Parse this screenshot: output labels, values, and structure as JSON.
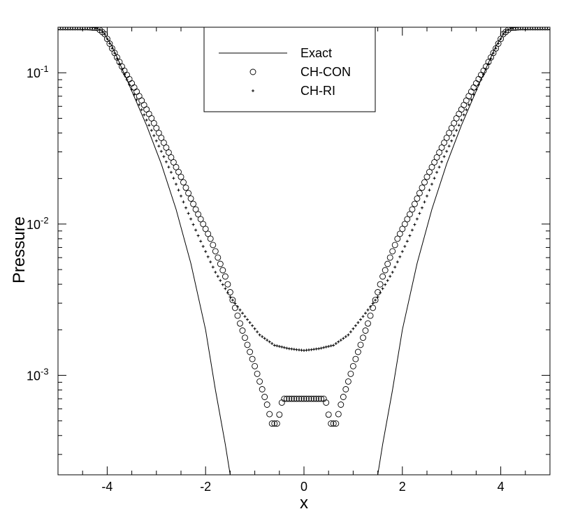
{
  "chart_data": {
    "type": "line",
    "title": "",
    "xlabel": "x",
    "ylabel": "Pressure",
    "xlim": [
      -5,
      5
    ],
    "ylim": [
      0.00022,
      0.2
    ],
    "yscale": "log",
    "grid": false,
    "legend_position": "top-center",
    "x_ticks": [
      "-4",
      "-2",
      "0",
      "2",
      "4"
    ],
    "y_ticks": [
      {
        "mantissa": "10",
        "exponent": "-1"
      },
      {
        "mantissa": "10",
        "exponent": "-2"
      },
      {
        "mantissa": "10",
        "exponent": "-3"
      }
    ],
    "series": [
      {
        "name": "Exact",
        "style": "line",
        "color": "#000000",
        "points": [
          [
            -5.0,
            0.2
          ],
          [
            -4.3,
            0.2
          ],
          [
            -4.1,
            0.19
          ],
          [
            -3.9,
            0.15
          ],
          [
            -3.6,
            0.09
          ],
          [
            -3.2,
            0.045
          ],
          [
            -2.9,
            0.025
          ],
          [
            -2.6,
            0.0125
          ],
          [
            -2.3,
            0.0055
          ],
          [
            -2.0,
            0.002
          ],
          [
            -1.8,
            0.0008
          ],
          [
            -1.6,
            0.00035
          ],
          [
            -1.5,
            0.00022
          ],
          null,
          [
            1.5,
            0.00022
          ],
          [
            1.6,
            0.00035
          ],
          [
            1.8,
            0.0008
          ],
          [
            2.0,
            0.002
          ],
          [
            2.3,
            0.0055
          ],
          [
            2.6,
            0.0125
          ],
          [
            2.9,
            0.025
          ],
          [
            3.2,
            0.045
          ],
          [
            3.6,
            0.09
          ],
          [
            3.9,
            0.15
          ],
          [
            4.1,
            0.19
          ],
          [
            4.3,
            0.2
          ],
          [
            5.0,
            0.2
          ]
        ]
      },
      {
        "name": "CH-CON",
        "style": "circle",
        "color": "#000000",
        "spacing": 0.05,
        "knots": [
          [
            0.0,
            0.0007
          ],
          [
            0.4,
            0.0007
          ],
          [
            0.45,
            0.00066
          ],
          [
            0.5,
            0.00055
          ],
          [
            0.55,
            0.00048
          ],
          [
            0.65,
            0.00048
          ],
          [
            0.75,
            0.00064
          ],
          [
            1.0,
            0.00115
          ],
          [
            1.3,
            0.0022
          ],
          [
            1.6,
            0.0045
          ],
          [
            1.9,
            0.008
          ],
          [
            2.2,
            0.0125
          ],
          [
            2.5,
            0.0205
          ],
          [
            2.8,
            0.032
          ],
          [
            3.1,
            0.05
          ],
          [
            3.4,
            0.075
          ],
          [
            3.7,
            0.11
          ],
          [
            3.9,
            0.145
          ],
          [
            4.05,
            0.18
          ],
          [
            4.2,
            0.198
          ],
          [
            4.4,
            0.2
          ],
          [
            5.0,
            0.2
          ]
        ]
      },
      {
        "name": "CH-RI",
        "style": "plus",
        "color": "#000000",
        "spacing": 0.05,
        "knots": [
          [
            0.0,
            0.00146
          ],
          [
            0.3,
            0.0015
          ],
          [
            0.6,
            0.00158
          ],
          [
            0.9,
            0.00185
          ],
          [
            1.2,
            0.00245
          ],
          [
            1.5,
            0.0033
          ],
          [
            1.8,
            0.0048
          ],
          [
            2.1,
            0.0077
          ],
          [
            2.4,
            0.0128
          ],
          [
            2.7,
            0.022
          ],
          [
            3.0,
            0.0355
          ],
          [
            3.3,
            0.057
          ],
          [
            3.6,
            0.09
          ],
          [
            3.85,
            0.135
          ],
          [
            4.05,
            0.18
          ],
          [
            4.2,
            0.198
          ],
          [
            4.4,
            0.2
          ],
          [
            5.0,
            0.2
          ]
        ]
      }
    ]
  }
}
